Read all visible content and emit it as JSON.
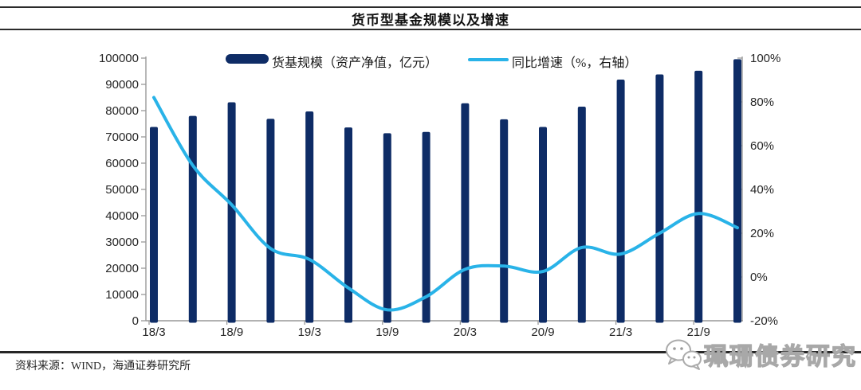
{
  "page": {
    "title": "货币型基金规模以及增速",
    "source_note": "资料来源：WIND，海通证券研究所",
    "watermark_text": "珮珊债券研究"
  },
  "legend": {
    "items": [
      {
        "label": "货基规模（资产净值，亿元）",
        "swatch": "bar",
        "color": "#0e2c66"
      },
      {
        "label": "同比增速（%，右轴）",
        "swatch": "line",
        "color": "#29b3e8"
      }
    ]
  },
  "chart_data": {
    "type": "bar+line",
    "title": "货币型基金规模以及增速",
    "legend_position": "top",
    "grid": false,
    "categories": [
      "18/3",
      "18/6",
      "18/9",
      "18/12",
      "19/3",
      "19/6",
      "19/9",
      "19/12",
      "20/3",
      "20/6",
      "20/9",
      "20/12",
      "21/3",
      "21/6",
      "21/9",
      "21/12"
    ],
    "x_axis_labels_shown": [
      "18/3",
      "18/9",
      "19/3",
      "19/9",
      "20/3",
      "20/9",
      "21/3",
      "21/9"
    ],
    "series": [
      {
        "name": "货基规模（资产净值，亿元）",
        "type": "bar",
        "y_axis": "left",
        "color": "#0e2c66",
        "values": [
          73800,
          78000,
          83200,
          76900,
          79700,
          73600,
          71400,
          71900,
          82800,
          76700,
          73800,
          81500,
          91800,
          93800,
          95200,
          99600
        ]
      },
      {
        "name": "同比增速（%，右轴）",
        "type": "line",
        "y_axis": "right",
        "color": "#29b3e8",
        "values": [
          82,
          51,
          33,
          13,
          8,
          -5,
          -15,
          -9,
          3.5,
          5,
          2.5,
          13.5,
          10.5,
          20,
          29,
          22.5
        ]
      }
    ],
    "left_axis": {
      "min": 0,
      "max": 100000,
      "step": 10000
    },
    "right_axis": {
      "min": -20,
      "max": 100,
      "step": 20,
      "unit": "%"
    }
  }
}
